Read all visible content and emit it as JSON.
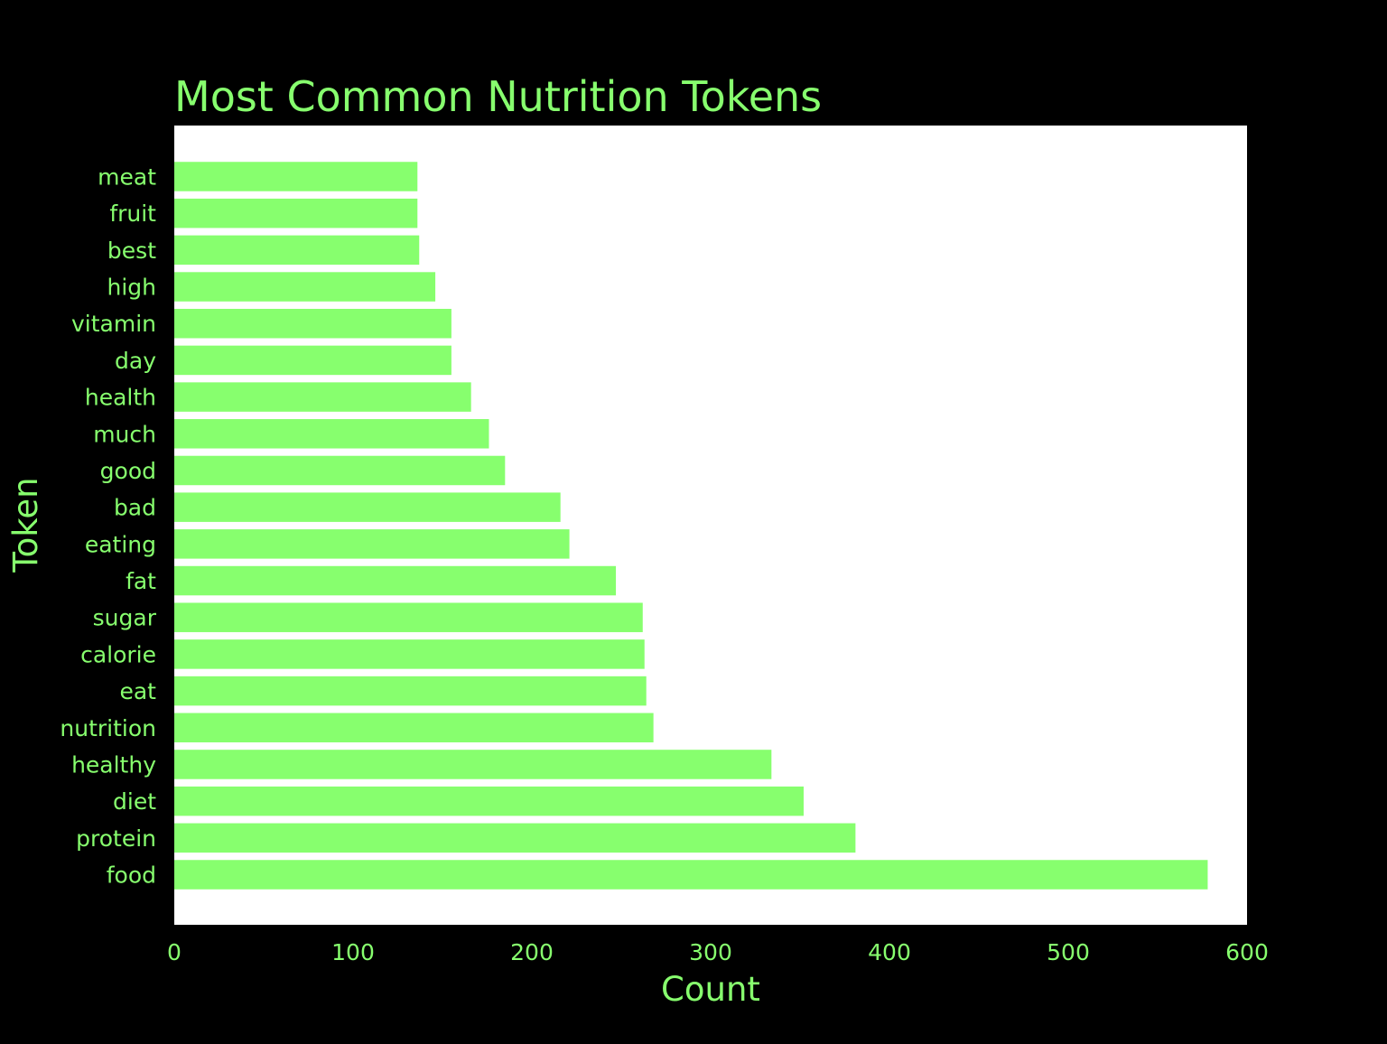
{
  "chart_data": {
    "type": "bar",
    "orientation": "horizontal",
    "title": "Most Common Nutrition Tokens",
    "xlabel": "Count",
    "ylabel": "Token",
    "categories": [
      "meat",
      "fruit",
      "best",
      "high",
      "vitamin",
      "day",
      "health",
      "much",
      "good",
      "bad",
      "eating",
      "fat",
      "sugar",
      "calorie",
      "eat",
      "nutrition",
      "healthy",
      "diet",
      "protein",
      "food"
    ],
    "values": [
      136,
      136,
      137,
      146,
      155,
      155,
      166,
      176,
      185,
      216,
      221,
      247,
      262,
      263,
      264,
      268,
      334,
      352,
      381,
      578
    ],
    "xlim": [
      0,
      600
    ],
    "xticks": [
      "0",
      "100",
      "200",
      "300",
      "400",
      "500",
      "600"
    ],
    "grid": false,
    "legend": "none",
    "colors": {
      "background": "#000000",
      "plot_area": "#ffffff",
      "bar": "#87ff6e",
      "text": "#87ff6e"
    }
  }
}
